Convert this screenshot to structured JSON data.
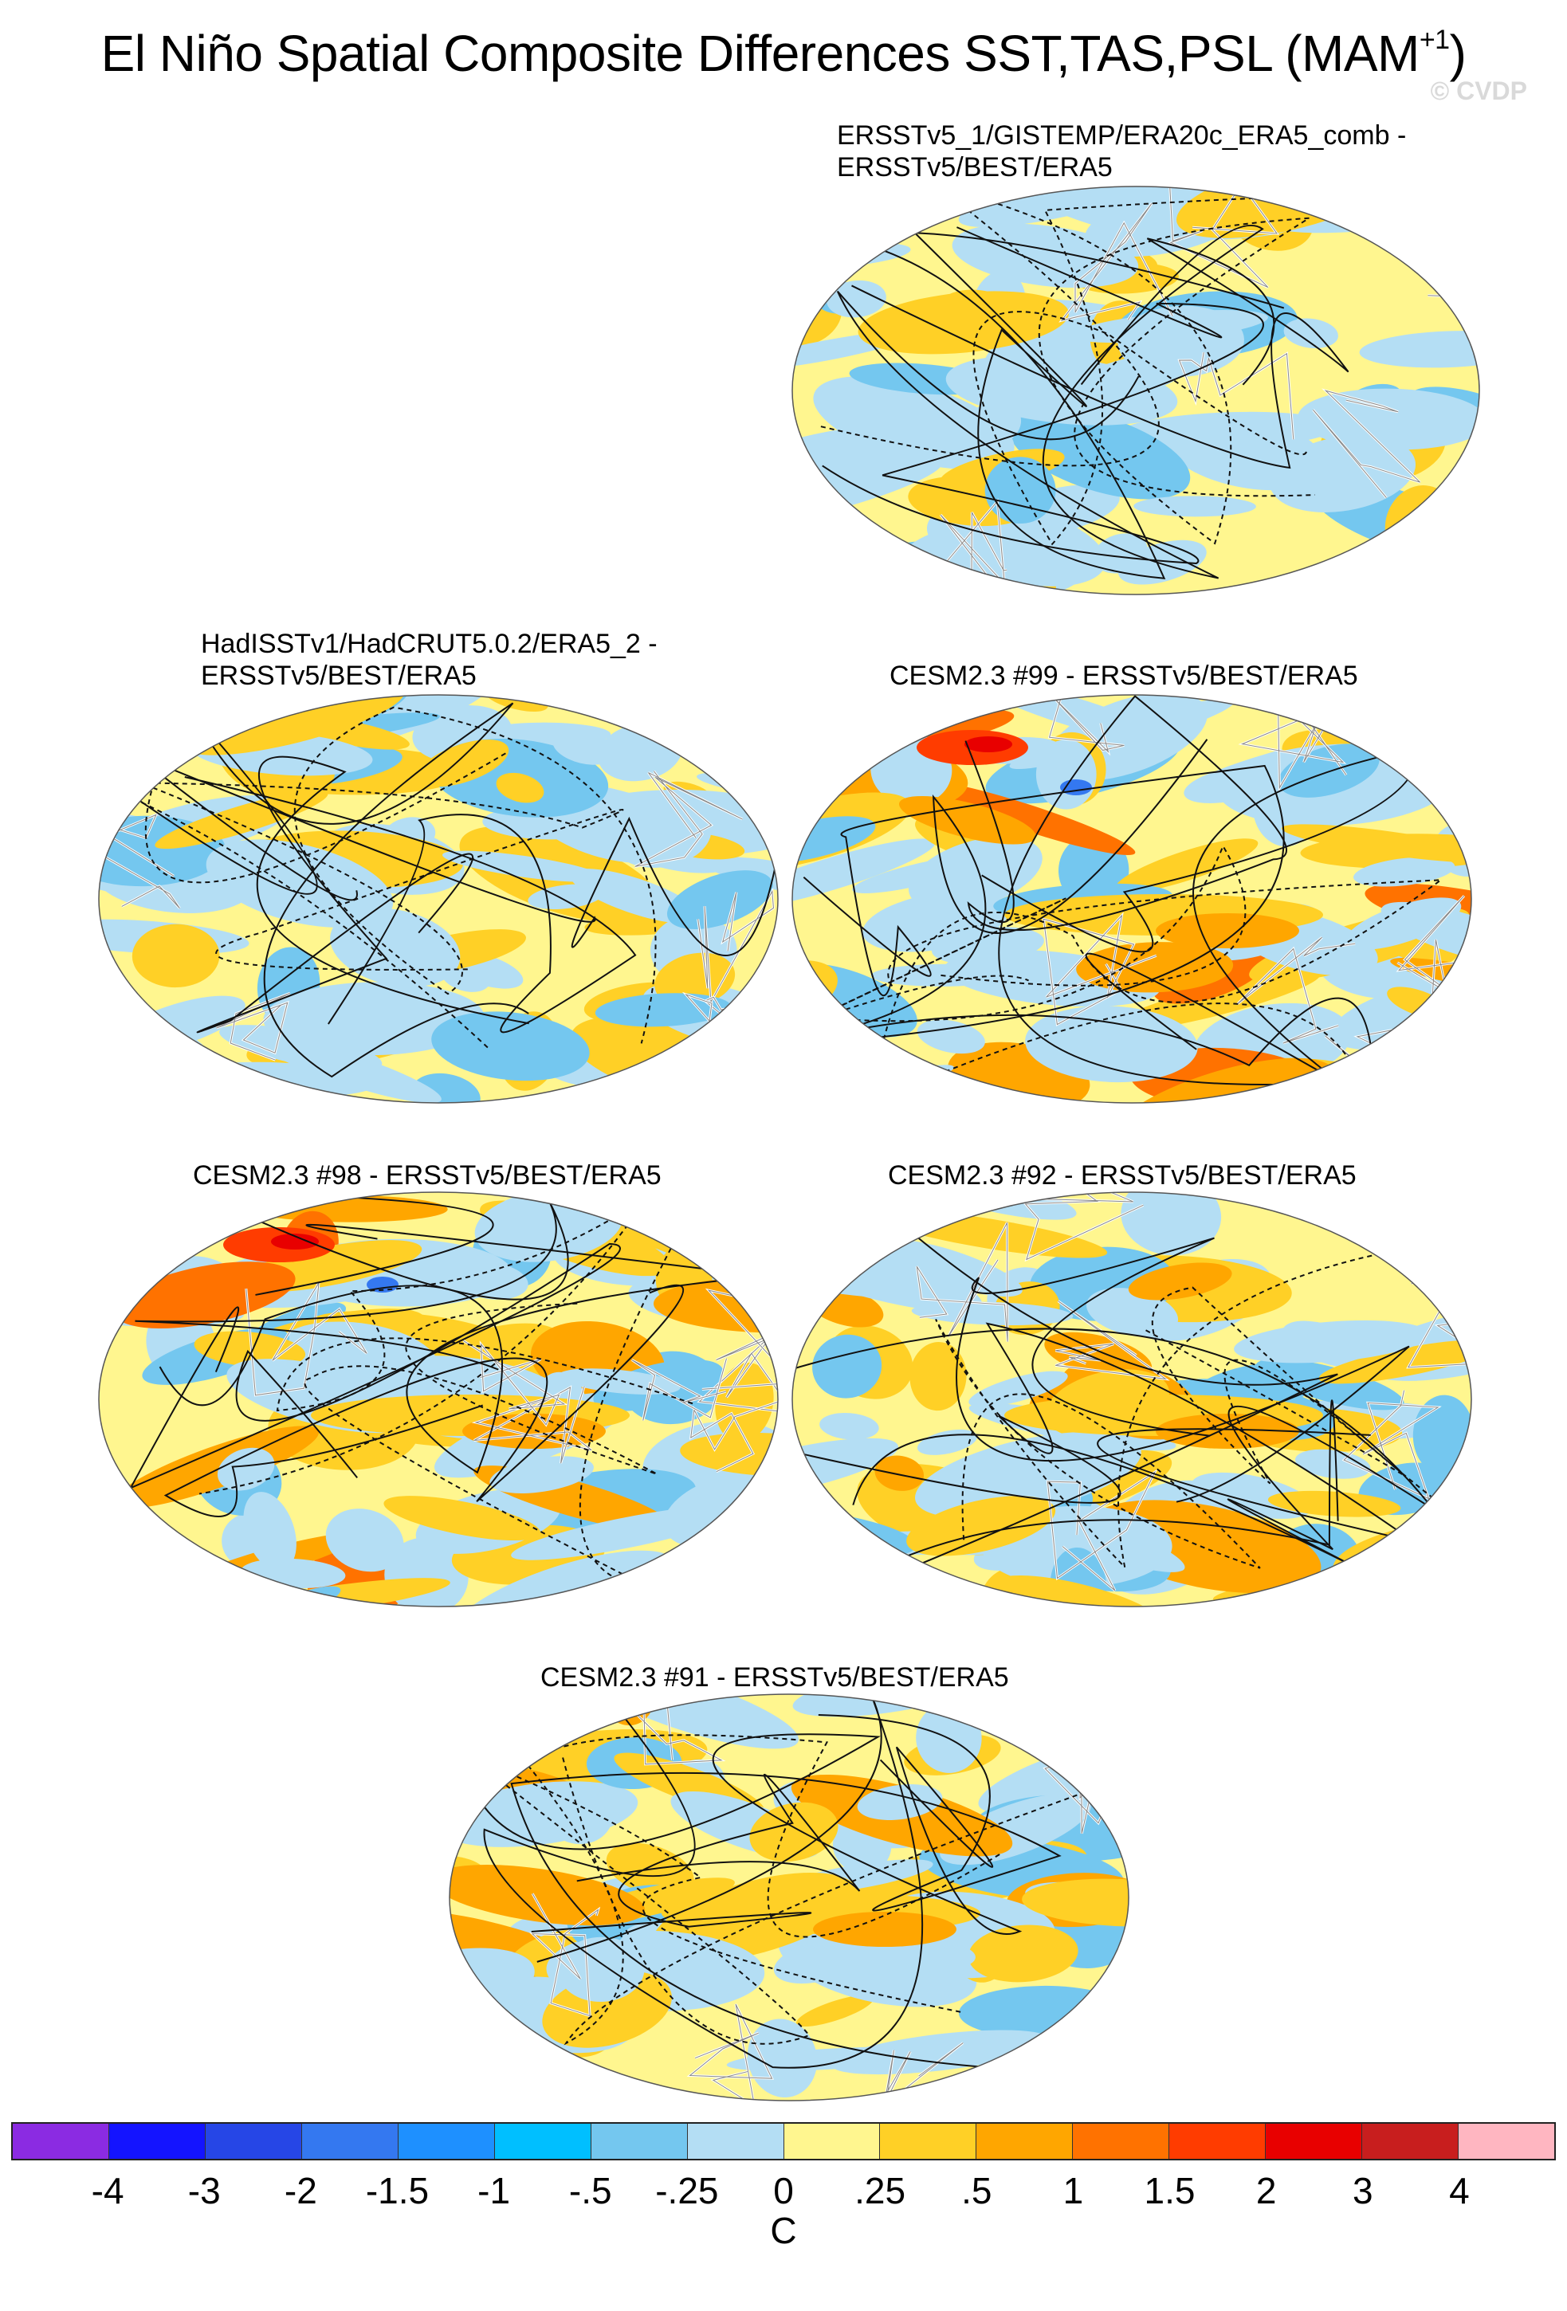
{
  "title": {
    "main": "El Niño Spatial Composite Differences SST,TAS,PSL (MAM",
    "superscript": "+1",
    "close": ")",
    "watermark": "© CVDP"
  },
  "panels": [
    {
      "line1": "ERSSTv5_1/GISTEMP/ERA20c_ERA5_comb -",
      "line2": "ERSSTv5/BEST/ERA5",
      "pattern": "weak"
    },
    {
      "line1": "HadISSTv1/HadCRUT5.0.2/ERA5_2 -",
      "line2": "ERSSTv5/BEST/ERA5",
      "pattern": "weak"
    },
    {
      "line1": "CESM2.3 #99 - ERSSTv5/BEST/ERA5",
      "line2": "",
      "pattern": "strong"
    },
    {
      "line1": "CESM2.3 #98 - ERSSTv5/BEST/ERA5",
      "line2": "",
      "pattern": "strong"
    },
    {
      "line1": "CESM2.3 #92 - ERSSTv5/BEST/ERA5",
      "line2": "",
      "pattern": "moderate"
    },
    {
      "line1": "CESM2.3 #91 - ERSSTv5/BEST/ERA5",
      "line2": "",
      "pattern": "moderate"
    }
  ],
  "colorbar": {
    "colors": [
      "#8b2be2",
      "#1414ff",
      "#2646e6",
      "#3478f0",
      "#1e90ff",
      "#00bfff",
      "#74c7ef",
      "#b4def4",
      "#fff68f",
      "#ffd026",
      "#ffa600",
      "#ff7200",
      "#ff3c00",
      "#e80000",
      "#c81e1e",
      "#ffb6c1"
    ],
    "labels": [
      "-4",
      "-3",
      "-2",
      "-1.5",
      "-1",
      "-.5",
      "-.25",
      "0",
      ".25",
      ".5",
      "1",
      "1.5",
      "2",
      "3",
      "4"
    ],
    "unit": "C"
  }
}
